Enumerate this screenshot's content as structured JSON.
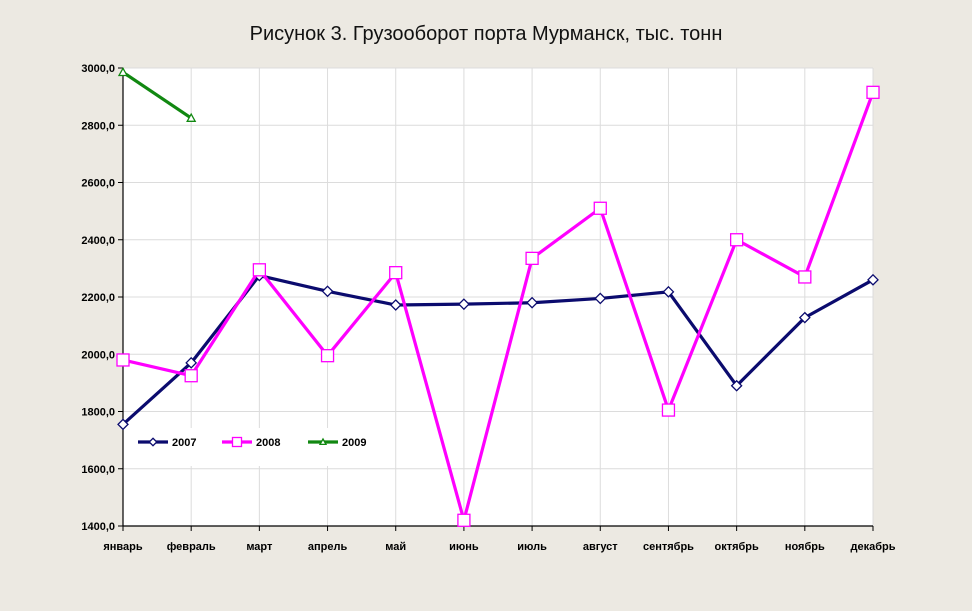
{
  "chart_data": {
    "type": "line",
    "title": "Рисунок 3. Грузооборот порта Мурманск, тыс. тонн",
    "categories": [
      "январь",
      "февраль",
      "март",
      "апрель",
      "май",
      "июнь",
      "июль",
      "август",
      "сентябрь",
      "октябрь",
      "ноябрь",
      "декабрь"
    ],
    "y_ticks": [
      "1400,0",
      "1600,0",
      "1800,0",
      "2000,0",
      "2200,0",
      "2400,0",
      "2600,0",
      "2800,0",
      "3000,0"
    ],
    "ylim": [
      1400,
      3000
    ],
    "grid": true,
    "legend_position": "bottom-left",
    "series": [
      {
        "name": "2007",
        "color": "#0b0b6e",
        "marker": "diamond",
        "values": [
          1755,
          1970,
          2275,
          2220,
          2172,
          2175,
          2180,
          2195,
          2218,
          1890,
          2128,
          2260
        ]
      },
      {
        "name": "2008",
        "color": "#ff00ff",
        "marker": "square",
        "values": [
          1980,
          1925,
          2295,
          1995,
          2285,
          1420,
          2335,
          2510,
          1805,
          2400,
          2270,
          2915
        ]
      },
      {
        "name": "2009",
        "color": "#118811",
        "marker": "triangle",
        "values": [
          2985,
          2825,
          null,
          null,
          null,
          null,
          null,
          null,
          null,
          null,
          null,
          null
        ]
      }
    ]
  }
}
